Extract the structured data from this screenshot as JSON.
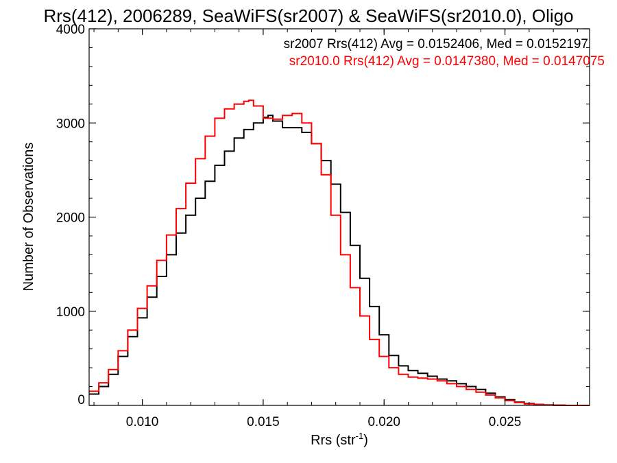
{
  "chart_data": {
    "type": "line",
    "title": "Rrs(412), 2006289, SeaWiFS(sr2007) & SeaWiFS(sr2010.0), Oligo",
    "xlabel": "Rrs (str",
    "xlabel_sup": "-1",
    "xlabel_end": ")",
    "ylabel": "Number of Observations",
    "xlim": [
      0.0078,
      0.0285
    ],
    "ylim": [
      0,
      4000
    ],
    "x_ticks": [
      0.01,
      0.015,
      0.02,
      0.025
    ],
    "x_tick_labels": [
      "0.010",
      "0.015",
      "0.020",
      "0.025"
    ],
    "y_ticks": [
      0,
      1000,
      2000,
      3000,
      4000
    ],
    "y_tick_labels": [
      "0",
      "1000",
      "2000",
      "3000",
      "4000"
    ],
    "grid": false,
    "legend_placement": "top-right",
    "series": [
      {
        "name": "sr2007 Rrs(412) Avg = 0.0152406, Med = 0.0152197",
        "color": "#000000",
        "x": [
          0.0078,
          0.0082,
          0.0086,
          0.009,
          0.0094,
          0.0098,
          0.0102,
          0.0106,
          0.011,
          0.0114,
          0.0118,
          0.0122,
          0.0126,
          0.013,
          0.0134,
          0.0138,
          0.0142,
          0.0146,
          0.015,
          0.0152,
          0.0154,
          0.0158,
          0.0162,
          0.0166,
          0.017,
          0.0174,
          0.0178,
          0.0182,
          0.0186,
          0.019,
          0.0194,
          0.0198,
          0.0202,
          0.0206,
          0.021,
          0.0214,
          0.0218,
          0.0222,
          0.0226,
          0.023,
          0.0234,
          0.0238,
          0.0242,
          0.0246,
          0.025,
          0.0254,
          0.0258,
          0.0262,
          0.0266,
          0.027,
          0.0275,
          0.028,
          0.0285
        ],
        "y": [
          120,
          200,
          330,
          520,
          730,
          930,
          1150,
          1370,
          1600,
          1830,
          2020,
          2200,
          2380,
          2550,
          2700,
          2840,
          2930,
          3000,
          3060,
          3080,
          3020,
          2950,
          2950,
          2900,
          2780,
          2600,
          2350,
          2050,
          1700,
          1350,
          1050,
          750,
          530,
          420,
          370,
          340,
          310,
          280,
          260,
          230,
          200,
          170,
          130,
          90,
          60,
          35,
          20,
          10,
          5,
          2,
          0,
          0,
          0
        ]
      },
      {
        "name": "sr2010.0 Rrs(412) Avg = 0.0147380, Med = 0.0147075",
        "color": "#ff0000",
        "x": [
          0.0078,
          0.0082,
          0.0086,
          0.009,
          0.0094,
          0.0098,
          0.0102,
          0.0106,
          0.011,
          0.0114,
          0.0118,
          0.0122,
          0.0126,
          0.013,
          0.0134,
          0.0138,
          0.0142,
          0.0144,
          0.0146,
          0.015,
          0.0154,
          0.0158,
          0.0162,
          0.0166,
          0.017,
          0.0174,
          0.0178,
          0.0182,
          0.0186,
          0.019,
          0.0194,
          0.0198,
          0.0202,
          0.0206,
          0.021,
          0.0214,
          0.0218,
          0.0222,
          0.0226,
          0.023,
          0.0234,
          0.0238,
          0.0242,
          0.0246,
          0.025,
          0.0254,
          0.0258,
          0.0262,
          0.0266,
          0.027,
          0.0275,
          0.028,
          0.0285
        ],
        "y": [
          150,
          240,
          380,
          580,
          800,
          1030,
          1270,
          1540,
          1810,
          2090,
          2360,
          2620,
          2860,
          3050,
          3150,
          3200,
          3230,
          3240,
          3180,
          3050,
          3040,
          3080,
          3100,
          3000,
          2780,
          2450,
          2020,
          1600,
          1250,
          950,
          700,
          520,
          400,
          330,
          300,
          290,
          280,
          260,
          230,
          200,
          170,
          140,
          110,
          80,
          50,
          30,
          15,
          8,
          4,
          2,
          0,
          0,
          0
        ]
      }
    ]
  }
}
